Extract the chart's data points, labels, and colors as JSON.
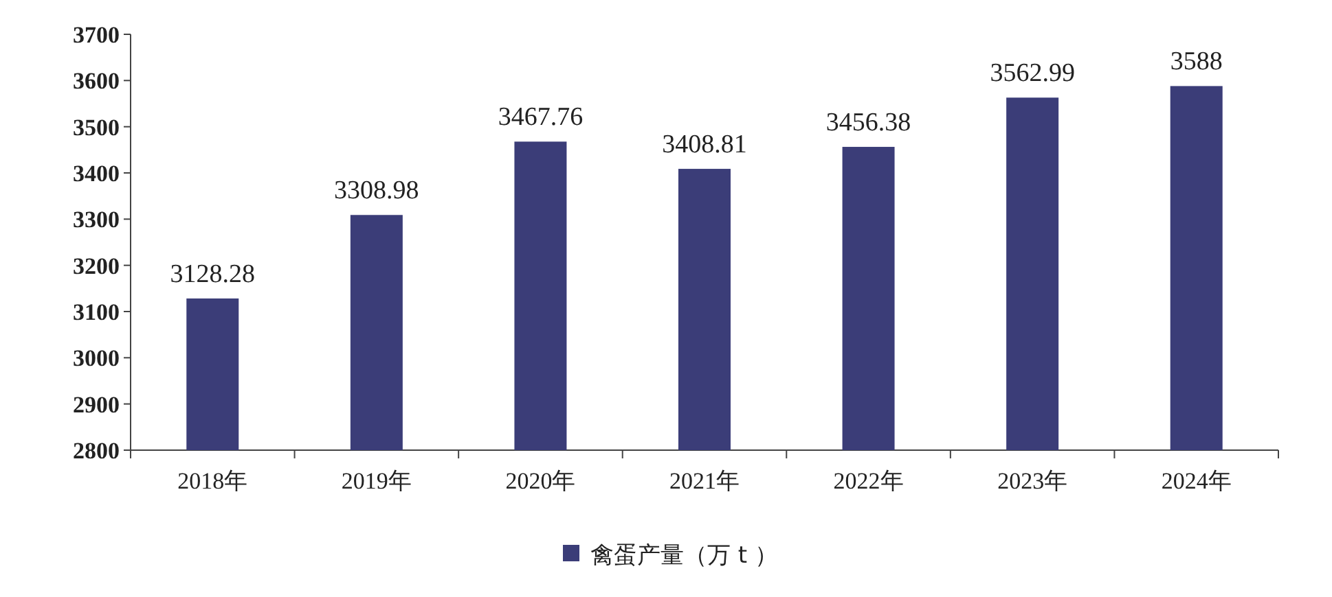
{
  "chart_data": {
    "type": "bar",
    "categories": [
      "2018年",
      "2019年",
      "2020年",
      "2021年",
      "2022年",
      "2023年",
      "2024年"
    ],
    "series": [
      {
        "name": "禽蛋产量（万 t ）",
        "color": "#3b3d78",
        "values": [
          3128.28,
          3308.98,
          3467.76,
          3408.81,
          3456.38,
          3562.99,
          3588
        ]
      }
    ],
    "ylim": [
      2800,
      3700
    ],
    "yticks": [
      2800,
      2900,
      3000,
      3100,
      3200,
      3300,
      3400,
      3500,
      3600,
      3700
    ],
    "data_labels": true,
    "legend": "bottom"
  }
}
